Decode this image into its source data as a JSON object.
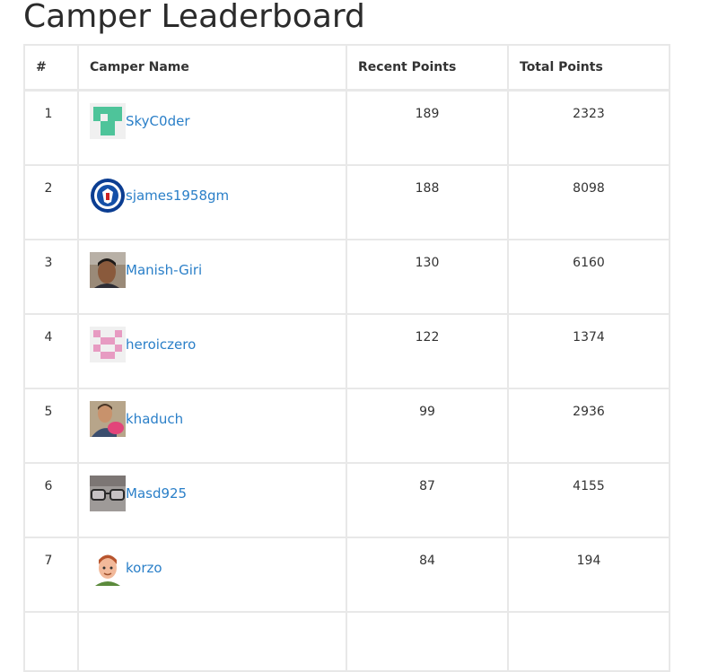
{
  "page": {
    "title": "Camper Leaderboard"
  },
  "table": {
    "headers": {
      "rank": "#",
      "name": "Camper Name",
      "recent": "Recent Points",
      "total": "Total Points"
    },
    "rows": [
      {
        "rank": "1",
        "name": "SkyC0der",
        "recent": "189",
        "total": "2323",
        "avatar": "green-identicon"
      },
      {
        "rank": "2",
        "name": "sjames1958gm",
        "recent": "188",
        "total": "8098",
        "avatar": "chelsea-badge"
      },
      {
        "rank": "3",
        "name": "Manish-Giri",
        "recent": "130",
        "total": "6160",
        "avatar": "man-photo"
      },
      {
        "rank": "4",
        "name": "heroiczero",
        "recent": "122",
        "total": "1374",
        "avatar": "pink-identicon"
      },
      {
        "rank": "5",
        "name": "khaduch",
        "recent": "99",
        "total": "2936",
        "avatar": "man-with-baby-photo"
      },
      {
        "rank": "6",
        "name": "Masd925",
        "recent": "87",
        "total": "4155",
        "avatar": "glasses-photo"
      },
      {
        "rank": "7",
        "name": "korzo",
        "recent": "84",
        "total": "194",
        "avatar": "cartoon-man"
      }
    ]
  },
  "colors": {
    "link": "#2a7fc8",
    "border": "#e8e8e8",
    "title": "#2b2b2b"
  }
}
